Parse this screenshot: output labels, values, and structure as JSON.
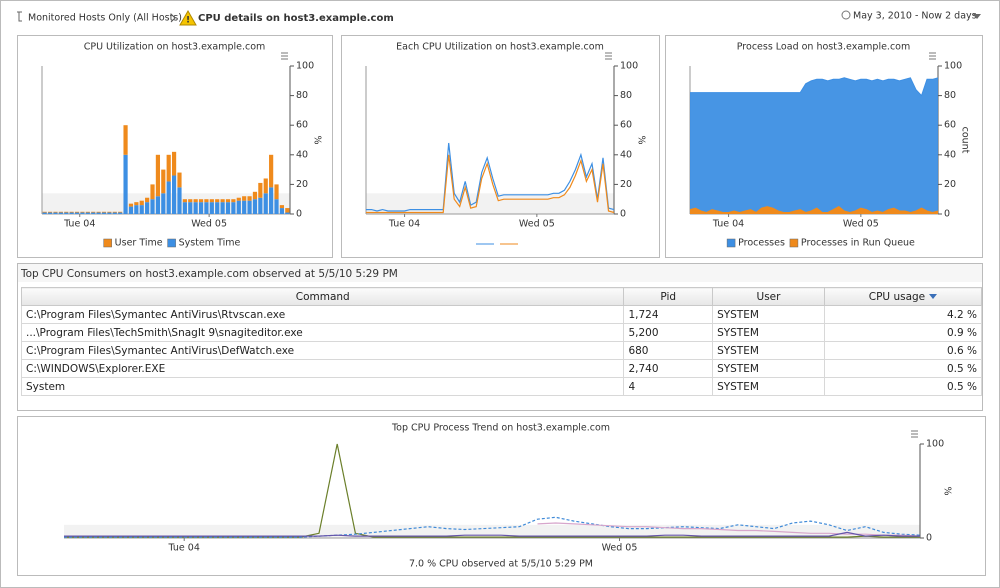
{
  "header": {
    "breadcrumb": "Monitored Hosts Only (All Hosts)",
    "title": "CPU details on host3.example.com",
    "time_range": "May 3, 2010 - Now 2 days"
  },
  "charts": [
    {
      "type": "bar",
      "title": "CPU Utilization on host3.example.com",
      "y_label": "%",
      "xlim": [
        0,
        46
      ],
      "xticks": [
        {
          "value": 7,
          "label": "Tue 04"
        },
        {
          "value": 31,
          "label": "Wed 05"
        }
      ],
      "ylim": [
        0,
        100
      ],
      "yticks": [
        0,
        20,
        40,
        60,
        80,
        100
      ],
      "series": [
        {
          "name": "User Time",
          "color": "#ef8a1c",
          "values": [
            0.5,
            0.5,
            0.5,
            0.5,
            0.5,
            0.5,
            0.5,
            0.5,
            0.5,
            0.5,
            0.5,
            0.5,
            0.5,
            0.5,
            0.5,
            20,
            2,
            2,
            3,
            3,
            10,
            28,
            16,
            18,
            16,
            10,
            2,
            2,
            2,
            2,
            2,
            2,
            2,
            2,
            2,
            2,
            2,
            3,
            3,
            5,
            10,
            10,
            22,
            10,
            2,
            3
          ]
        },
        {
          "name": "System Time",
          "color": "#3d8fe3",
          "values": [
            1,
            1,
            1,
            1,
            1,
            1,
            1,
            1,
            1,
            1,
            1,
            1,
            1,
            1,
            1,
            40,
            5,
            6,
            6,
            8,
            10,
            12,
            14,
            22,
            26,
            18,
            8,
            8,
            8,
            8,
            8,
            8,
            8,
            8,
            8,
            8,
            9,
            9,
            9,
            10,
            11,
            14,
            18,
            10,
            4,
            1
          ]
        }
      ]
    },
    {
      "type": "line",
      "title": "Each CPU Utilization on host3.example.com",
      "y_label": "%",
      "xlim": [
        0,
        45
      ],
      "xticks": [
        {
          "value": 7,
          "label": "Tue 04"
        },
        {
          "value": 31,
          "label": "Wed 05"
        }
      ],
      "ylim": [
        0,
        100
      ],
      "yticks": [
        0,
        20,
        40,
        60,
        80,
        100
      ],
      "series": [
        {
          "color": "#3d8fe3",
          "values": [
            3,
            3,
            2,
            3,
            2,
            2,
            2,
            2,
            3,
            3,
            3,
            3,
            3,
            3,
            3,
            48,
            14,
            8,
            22,
            6,
            8,
            28,
            38,
            24,
            12,
            13,
            13,
            13,
            13,
            13,
            13,
            13,
            13,
            13,
            14,
            14,
            16,
            22,
            30,
            40,
            25,
            34,
            10,
            38,
            4,
            3
          ]
        },
        {
          "color": "#ef8a1c",
          "values": [
            1,
            1,
            1,
            1,
            1,
            1,
            1,
            1,
            1,
            1,
            1,
            1,
            1,
            1,
            1,
            40,
            10,
            5,
            18,
            4,
            5,
            24,
            34,
            20,
            9,
            10,
            10,
            10,
            10,
            10,
            10,
            10,
            10,
            10,
            11,
            11,
            13,
            18,
            26,
            36,
            22,
            30,
            8,
            34,
            2,
            1
          ]
        }
      ]
    },
    {
      "type": "area",
      "title": "Process Load on host3.example.com",
      "y_label": "count",
      "xlim": [
        0,
        45
      ],
      "xticks": [
        {
          "value": 7,
          "label": "Tue 04"
        },
        {
          "value": 31,
          "label": "Wed 05"
        }
      ],
      "ylim": [
        0,
        100
      ],
      "yticks": [
        0,
        20,
        40,
        60,
        80,
        100
      ],
      "series": [
        {
          "name": "Processes",
          "color": "#3d8fe3",
          "values": [
            82,
            82,
            82,
            82,
            82,
            82,
            82,
            82,
            82,
            82,
            82,
            82,
            82,
            82,
            82,
            82,
            82,
            82,
            82,
            82,
            82,
            88,
            90,
            91,
            91,
            90,
            91,
            91,
            92,
            91,
            90,
            91,
            91,
            90,
            91,
            90,
            91,
            91,
            90,
            91,
            92,
            84,
            80,
            91,
            91,
            92
          ]
        },
        {
          "name": "Processes in Run Queue",
          "color": "#ef8a1c",
          "values": [
            3,
            4,
            2,
            1,
            3,
            2,
            1,
            1,
            2,
            1,
            2,
            3,
            1,
            4,
            5,
            4,
            2,
            1,
            1,
            2,
            3,
            1,
            2,
            4,
            1,
            1,
            3,
            5,
            2,
            1,
            2,
            4,
            3,
            1,
            2,
            1,
            3,
            4,
            2,
            2,
            1,
            2,
            4,
            2,
            1,
            2
          ]
        }
      ]
    },
    {
      "type": "line",
      "title": "Top CPU Process Trend on host3.example.com",
      "y_label": "%",
      "footer": "7.0 % CPU observed at 5/5/10 5:29 PM",
      "xlim": [
        0,
        47
      ],
      "xticks": [
        {
          "value": 6.6,
          "label": "Tue 04"
        },
        {
          "value": 30.5,
          "label": "Wed 05"
        }
      ],
      "ylim": [
        0,
        100
      ],
      "yticks": [
        0,
        100
      ],
      "series": [
        {
          "color": "#6b7f2a",
          "values": [
            1,
            1,
            1,
            1,
            1,
            1,
            1,
            1,
            1,
            1,
            1,
            1,
            1,
            1,
            5,
            100,
            5,
            1,
            1,
            1,
            1,
            1,
            1,
            1,
            1,
            1,
            1,
            1,
            1,
            1,
            1,
            1,
            1,
            1,
            1,
            1,
            1,
            1,
            1,
            1,
            1,
            1,
            1,
            1,
            2,
            1,
            1,
            1
          ]
        },
        {
          "color": "#3f8ad8",
          "dash": true,
          "values": [
            1,
            1,
            1,
            1,
            1,
            1,
            1,
            1,
            1,
            1,
            1,
            1,
            1,
            1,
            2,
            3,
            4,
            6,
            8,
            10,
            12,
            10,
            9,
            10,
            11,
            12,
            20,
            22,
            18,
            15,
            12,
            10,
            10,
            11,
            12,
            11,
            10,
            14,
            12,
            10,
            16,
            18,
            14,
            8,
            12,
            6,
            4,
            3
          ]
        },
        {
          "color": "#d7a6cc",
          "values": [
            null,
            null,
            null,
            null,
            null,
            null,
            null,
            null,
            null,
            null,
            null,
            null,
            null,
            null,
            null,
            null,
            null,
            null,
            null,
            null,
            null,
            null,
            null,
            null,
            null,
            null,
            15,
            16,
            15,
            14,
            13,
            12,
            12,
            11,
            10,
            10,
            9,
            8,
            8,
            7,
            6,
            5,
            5,
            4,
            4,
            3,
            3,
            2
          ]
        },
        {
          "color": "#6655aa",
          "values": [
            2,
            2,
            2,
            2,
            2,
            2,
            2,
            2,
            2,
            2,
            2,
            2,
            2,
            2,
            2,
            3,
            2,
            2,
            2,
            2,
            2,
            2,
            3,
            3,
            3,
            2,
            2,
            2,
            2,
            2,
            2,
            2,
            2,
            3,
            3,
            2,
            2,
            2,
            2,
            2,
            2,
            2,
            2,
            6,
            2,
            3,
            2,
            2
          ]
        }
      ]
    }
  ],
  "table": {
    "title": "Top CPU Consumers on host3.example.com observed at 5/5/10 5:29 PM",
    "columns": [
      "Command",
      "Pid",
      "User",
      "CPU usage"
    ],
    "rows": [
      [
        "C:\\Program Files\\Symantec AntiVirus\\Rtvscan.exe",
        "1,724",
        "SYSTEM",
        "4.2 %"
      ],
      [
        "...\\Program Files\\TechSmith\\SnagIt 9\\snagiteditor.exe",
        "5,200",
        "SYSTEM",
        "0.9 %"
      ],
      [
        "C:\\Program Files\\Symantec AntiVirus\\DefWatch.exe",
        "680",
        "SYSTEM",
        "0.6 %"
      ],
      [
        "C:\\WINDOWS\\Explorer.EXE",
        "2,740",
        "SYSTEM",
        "0.5 %"
      ],
      [
        "System",
        "4",
        "SYSTEM",
        "0.5 %"
      ]
    ]
  }
}
